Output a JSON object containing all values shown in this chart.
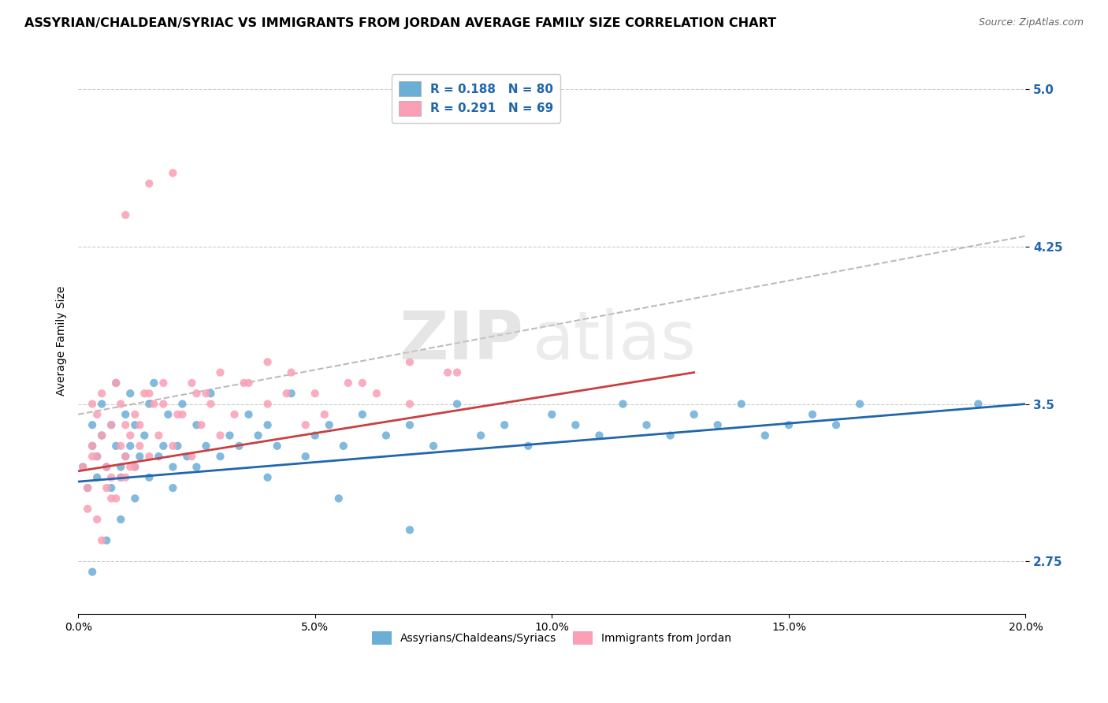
{
  "title": "ASSYRIAN/CHALDEAN/SYRIAC VS IMMIGRANTS FROM JORDAN AVERAGE FAMILY SIZE CORRELATION CHART",
  "source": "Source: ZipAtlas.com",
  "ylabel": "Average Family Size",
  "xlim": [
    0.0,
    0.2
  ],
  "ylim": [
    2.5,
    5.1
  ],
  "yticks": [
    2.75,
    3.5,
    4.25,
    5.0
  ],
  "xticks": [
    0.0,
    0.05,
    0.1,
    0.15,
    0.2
  ],
  "xticklabels": [
    "0.0%",
    "5.0%",
    "10.0%",
    "15.0%",
    "20.0%"
  ],
  "legend_labels": [
    "Assyrians/Chaldeans/Syriacs",
    "Immigrants from Jordan"
  ],
  "R_blue": 0.188,
  "N_blue": 80,
  "R_pink": 0.291,
  "N_pink": 69,
  "blue_color": "#6baed6",
  "pink_color": "#fa9fb5",
  "blue_line_color": "#2166ac",
  "pink_line_color": "#c94040",
  "background_color": "#ffffff",
  "grid_color": "#cccccc",
  "watermark_top": "ZIP",
  "watermark_bottom": "atlas",
  "blue_scatter": {
    "x": [
      0.001,
      0.002,
      0.003,
      0.003,
      0.004,
      0.004,
      0.005,
      0.005,
      0.006,
      0.007,
      0.007,
      0.008,
      0.008,
      0.009,
      0.009,
      0.01,
      0.01,
      0.011,
      0.011,
      0.012,
      0.012,
      0.013,
      0.014,
      0.015,
      0.015,
      0.016,
      0.017,
      0.018,
      0.019,
      0.02,
      0.021,
      0.022,
      0.023,
      0.025,
      0.027,
      0.028,
      0.03,
      0.032,
      0.034,
      0.036,
      0.038,
      0.04,
      0.042,
      0.045,
      0.048,
      0.05,
      0.053,
      0.056,
      0.06,
      0.065,
      0.07,
      0.075,
      0.08,
      0.085,
      0.09,
      0.095,
      0.1,
      0.105,
      0.11,
      0.115,
      0.12,
      0.125,
      0.13,
      0.135,
      0.14,
      0.145,
      0.15,
      0.155,
      0.16,
      0.165,
      0.003,
      0.006,
      0.009,
      0.012,
      0.02,
      0.025,
      0.04,
      0.055,
      0.07,
      0.19
    ],
    "y": [
      3.2,
      3.1,
      3.3,
      3.4,
      3.25,
      3.15,
      3.35,
      3.5,
      3.2,
      3.4,
      3.1,
      3.3,
      3.6,
      3.2,
      3.15,
      3.45,
      3.25,
      3.3,
      3.55,
      3.2,
      3.4,
      3.25,
      3.35,
      3.5,
      3.15,
      3.6,
      3.25,
      3.3,
      3.45,
      3.2,
      3.3,
      3.5,
      3.25,
      3.4,
      3.3,
      3.55,
      3.25,
      3.35,
      3.3,
      3.45,
      3.35,
      3.4,
      3.3,
      3.55,
      3.25,
      3.35,
      3.4,
      3.3,
      3.45,
      3.35,
      3.4,
      3.3,
      3.5,
      3.35,
      3.4,
      3.3,
      3.45,
      3.4,
      3.35,
      3.5,
      3.4,
      3.35,
      3.45,
      3.4,
      3.5,
      3.35,
      3.4,
      3.45,
      3.4,
      3.5,
      2.7,
      2.85,
      2.95,
      3.05,
      3.1,
      3.2,
      3.15,
      3.05,
      2.9,
      3.5
    ]
  },
  "pink_scatter": {
    "x": [
      0.001,
      0.002,
      0.003,
      0.003,
      0.004,
      0.004,
      0.005,
      0.005,
      0.006,
      0.007,
      0.007,
      0.008,
      0.009,
      0.009,
      0.01,
      0.01,
      0.011,
      0.012,
      0.013,
      0.014,
      0.015,
      0.016,
      0.017,
      0.018,
      0.02,
      0.022,
      0.024,
      0.026,
      0.028,
      0.03,
      0.033,
      0.036,
      0.04,
      0.044,
      0.048,
      0.052,
      0.057,
      0.063,
      0.07,
      0.078,
      0.002,
      0.004,
      0.006,
      0.008,
      0.01,
      0.012,
      0.003,
      0.005,
      0.007,
      0.009,
      0.011,
      0.013,
      0.015,
      0.018,
      0.021,
      0.024,
      0.027,
      0.03,
      0.035,
      0.04,
      0.045,
      0.05,
      0.06,
      0.07,
      0.08,
      0.02,
      0.025,
      0.01,
      0.015
    ],
    "y": [
      3.2,
      3.1,
      3.3,
      3.5,
      3.25,
      3.45,
      3.35,
      3.55,
      3.2,
      3.4,
      3.15,
      3.6,
      3.3,
      3.5,
      3.25,
      3.4,
      3.2,
      3.45,
      3.3,
      3.55,
      3.25,
      3.5,
      3.35,
      3.6,
      3.3,
      3.45,
      3.25,
      3.4,
      3.5,
      3.35,
      3.45,
      3.6,
      3.5,
      3.55,
      3.4,
      3.45,
      3.6,
      3.55,
      3.5,
      3.65,
      3.0,
      2.95,
      3.1,
      3.05,
      3.15,
      3.2,
      3.25,
      2.85,
      3.05,
      3.15,
      3.35,
      3.4,
      3.55,
      3.5,
      3.45,
      3.6,
      3.55,
      3.65,
      3.6,
      3.7,
      3.65,
      3.55,
      3.6,
      3.7,
      3.65,
      4.6,
      3.55,
      4.4,
      4.55
    ]
  }
}
